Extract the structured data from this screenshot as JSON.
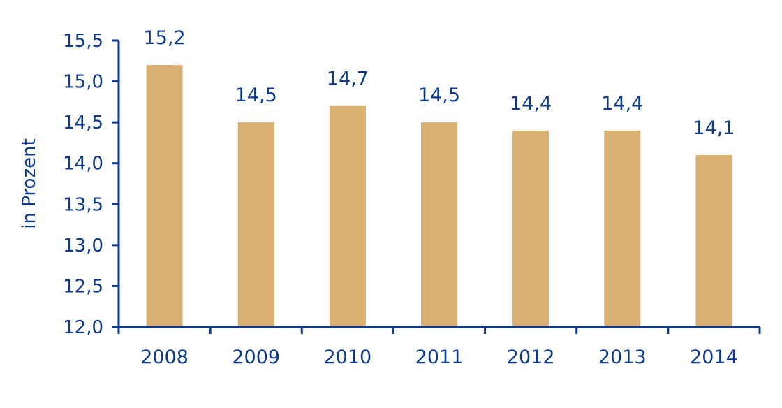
{
  "colors": {
    "axis": "#0b3a8c",
    "bar": "#d9b072",
    "text": "#0b3a8c",
    "background": "#ffffff"
  },
  "chart_data": {
    "type": "bar",
    "title": "",
    "xlabel": "",
    "ylabel": "in Prozent",
    "categories": [
      "2008",
      "2009",
      "2010",
      "2011",
      "2012",
      "2013",
      "2014"
    ],
    "values": [
      15.2,
      14.5,
      14.7,
      14.5,
      14.4,
      14.4,
      14.1
    ],
    "value_labels": [
      "15,2",
      "14,5",
      "14,7",
      "14,5",
      "14,4",
      "14,4",
      "14,1"
    ],
    "ylim": [
      12.0,
      15.5
    ],
    "yticks": [
      12.0,
      12.5,
      13.0,
      13.5,
      14.0,
      14.5,
      15.0,
      15.5
    ],
    "ytick_labels": [
      "12,0",
      "12,5",
      "13,0",
      "13,5",
      "14,0",
      "14,5",
      "15,0",
      "15,5"
    ],
    "grid": false,
    "legend": "none"
  }
}
